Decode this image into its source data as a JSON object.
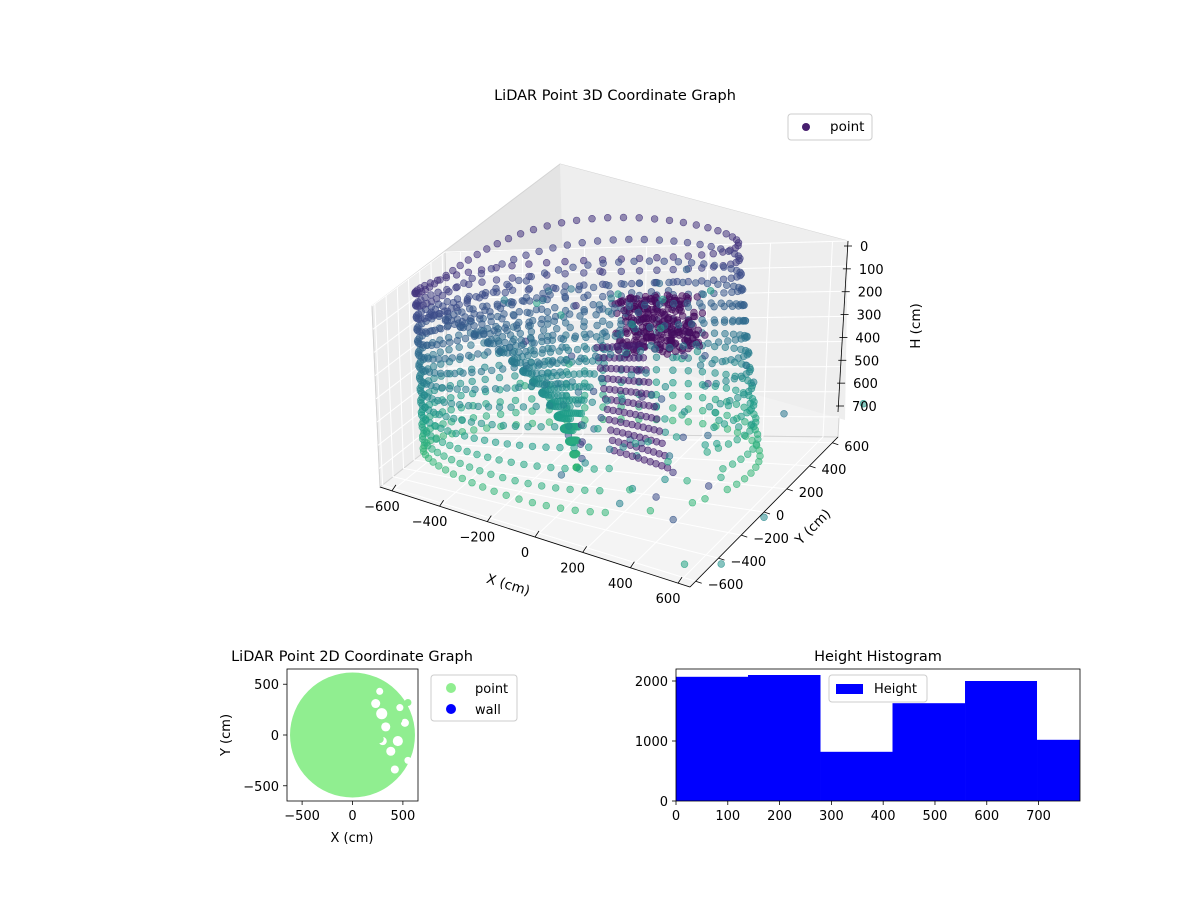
{
  "chart_data": [
    {
      "type": "scatter3d",
      "title": "LiDAR Point 3D Coordinate Graph",
      "xlabel": "X (cm)",
      "ylabel": "Y (cm)",
      "zlabel": "H (cm)",
      "xlim": [
        -650,
        650
      ],
      "ylim": [
        -650,
        650
      ],
      "zlim": [
        0,
        780
      ],
      "z_inverted": true,
      "xticks": [
        -600,
        -400,
        -200,
        0,
        200,
        400,
        600
      ],
      "yticks": [
        -600,
        -400,
        -200,
        0,
        200,
        400,
        600
      ],
      "zticks": [
        0,
        100,
        200,
        300,
        400,
        500,
        600,
        700
      ],
      "legend": {
        "position": "top-right",
        "entries": [
          {
            "label": "point",
            "color": "#471f6e"
          }
        ]
      },
      "colormap": "viridis",
      "grid": true,
      "structure": {
        "wall_radius": 600,
        "wall_height_range": [
          50,
          700
        ],
        "floor_cone_apex": [
          60,
          -250,
          700
        ],
        "cluster_center": [
          150,
          400,
          300
        ]
      }
    },
    {
      "type": "scatter",
      "title": "LiDAR Point 2D Coordinate Graph",
      "xlabel": "X (cm)",
      "ylabel": "Y (cm)",
      "xlim": [
        -650,
        650
      ],
      "ylim": [
        -650,
        650
      ],
      "xticks": [
        -500,
        0,
        500
      ],
      "yticks": [
        -500,
        0,
        500
      ],
      "legend": {
        "position": "outside-right",
        "entries": [
          {
            "label": "point",
            "color": "#90ee90"
          },
          {
            "label": "wall",
            "color": "#0000ff"
          }
        ]
      },
      "region": {
        "shape": "disc",
        "radius": 620,
        "color": "#90ee90"
      },
      "holes": [
        {
          "x": 230,
          "y": 310,
          "r": 45
        },
        {
          "x": 290,
          "y": 210,
          "r": 55
        },
        {
          "x": 330,
          "y": 80,
          "r": 45
        },
        {
          "x": 300,
          "y": -60,
          "r": 40
        },
        {
          "x": 380,
          "y": -160,
          "r": 45
        },
        {
          "x": 450,
          "y": -60,
          "r": 50
        },
        {
          "x": 520,
          "y": 120,
          "r": 40
        },
        {
          "x": 470,
          "y": 270,
          "r": 35
        },
        {
          "x": 420,
          "y": -340,
          "r": 40
        },
        {
          "x": 270,
          "y": 430,
          "r": 35
        },
        {
          "x": 550,
          "y": -250,
          "r": 35
        }
      ],
      "blobs": [
        {
          "x": 450,
          "y": 150,
          "r": 45
        },
        {
          "x": 270,
          "y": -40,
          "r": 40
        },
        {
          "x": 520,
          "y": 0,
          "r": 40
        },
        {
          "x": 430,
          "y": -250,
          "r": 35
        },
        {
          "x": 550,
          "y": 320,
          "r": 35
        }
      ]
    },
    {
      "type": "bar",
      "title": "Height Histogram",
      "xlim": [
        0,
        780
      ],
      "ylim": [
        0,
        2200
      ],
      "xticks": [
        0,
        100,
        200,
        300,
        400,
        500,
        600,
        700
      ],
      "yticks": [
        0,
        1000,
        2000
      ],
      "color": "#0000ff",
      "legend": {
        "position": "top-center",
        "entries": [
          {
            "label": "Height",
            "color": "#0000ff"
          }
        ]
      },
      "bins": [
        {
          "x0": 0,
          "x1": 139,
          "value": 2070
        },
        {
          "x0": 139,
          "x1": 279,
          "value": 2100
        },
        {
          "x0": 279,
          "x1": 418,
          "value": 820
        },
        {
          "x0": 418,
          "x1": 558,
          "value": 1630
        },
        {
          "x0": 558,
          "x1": 697,
          "value": 2000
        },
        {
          "x0": 697,
          "x1": 780,
          "value": 1020
        }
      ]
    }
  ]
}
